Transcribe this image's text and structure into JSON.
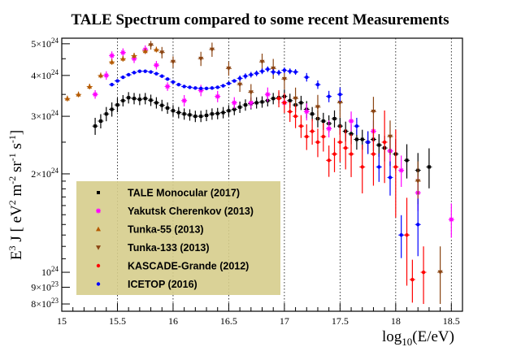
{
  "chart_data": {
    "type": "scatter",
    "title": "TALE Spectrum compared to some recent Measurements",
    "xlabel": "log10(E/eV)",
    "ylabel": "E3 J [ eV2 m-2 sr-1 s-1 ]",
    "xlim": [
      15,
      18.6
    ],
    "ylim": [
      7.6e+23,
      5.2e+24
    ],
    "y_scale": "log",
    "grid": "vertical dotted lines at 15.5, 16, 16.5, 17, 17.5, 18, 18.5",
    "legend_position": "bottom-left",
    "x_ticks": [
      "15",
      "15.5",
      "16",
      "16.5",
      "17",
      "17.5",
      "18",
      "18.5"
    ],
    "y_ticks": [
      {
        "value": 5e+24,
        "mantissa": "5",
        "exp": "24"
      },
      {
        "value": 4e+24,
        "mantissa": "4",
        "exp": "24"
      },
      {
        "value": 3e+24,
        "mantissa": "3",
        "exp": "24"
      },
      {
        "value": 2e+24,
        "mantissa": "2",
        "exp": "24"
      },
      {
        "value": 1e+24,
        "mantissa": "",
        "exp": "24"
      },
      {
        "value": 9e+23,
        "mantissa": "9",
        "exp": "23"
      },
      {
        "value": 8e+23,
        "mantissa": "8",
        "exp": "23"
      }
    ],
    "series": [
      {
        "name": "TALE Monocular (2017)",
        "color": "#000000",
        "marker": "square",
        "points": [
          [
            15.3,
            2.8e+24,
            0.06
          ],
          [
            15.35,
            2.9e+24,
            0.05
          ],
          [
            15.4,
            3.05e+24,
            0.05
          ],
          [
            15.45,
            3.15e+24,
            0.05
          ],
          [
            15.5,
            3.25e+24,
            0.05
          ],
          [
            15.55,
            3.35e+24,
            0.04
          ],
          [
            15.6,
            3.42e+24,
            0.04
          ],
          [
            15.65,
            3.4e+24,
            0.04
          ],
          [
            15.7,
            3.38e+24,
            0.04
          ],
          [
            15.75,
            3.4e+24,
            0.04
          ],
          [
            15.8,
            3.36e+24,
            0.04
          ],
          [
            15.85,
            3.3e+24,
            0.04
          ],
          [
            15.9,
            3.24e+24,
            0.04
          ],
          [
            15.95,
            3.18e+24,
            0.04
          ],
          [
            16.0,
            3.12e+24,
            0.04
          ],
          [
            16.05,
            3.08e+24,
            0.04
          ],
          [
            16.1,
            3.05e+24,
            0.04
          ],
          [
            16.15,
            3.03e+24,
            0.04
          ],
          [
            16.2,
            3e+24,
            0.04
          ],
          [
            16.25,
            3e+24,
            0.04
          ],
          [
            16.3,
            3.02e+24,
            0.04
          ],
          [
            16.35,
            3.05e+24,
            0.04
          ],
          [
            16.4,
            3.06e+24,
            0.04
          ],
          [
            16.45,
            3.08e+24,
            0.04
          ],
          [
            16.5,
            3.12e+24,
            0.04
          ],
          [
            16.55,
            3.15e+24,
            0.04
          ],
          [
            16.6,
            3.2e+24,
            0.04
          ],
          [
            16.65,
            3.25e+24,
            0.04
          ],
          [
            16.7,
            3.28e+24,
            0.04
          ],
          [
            16.75,
            3.3e+24,
            0.04
          ],
          [
            16.8,
            3.32e+24,
            0.04
          ],
          [
            16.85,
            3.35e+24,
            0.04
          ],
          [
            16.9,
            3.4e+24,
            0.04
          ],
          [
            16.95,
            3.42e+24,
            0.04
          ],
          [
            17.0,
            3.45e+24,
            0.05
          ],
          [
            17.05,
            3.35e+24,
            0.05
          ],
          [
            17.1,
            3.25e+24,
            0.05
          ],
          [
            17.15,
            3.3e+24,
            0.05
          ],
          [
            17.2,
            3.15e+24,
            0.06
          ],
          [
            17.25,
            3.05e+24,
            0.05
          ],
          [
            17.3,
            2.95e+24,
            0.06
          ],
          [
            17.35,
            2.9e+24,
            0.06
          ],
          [
            17.4,
            2.85e+24,
            0.06
          ],
          [
            17.45,
            2.95e+24,
            0.06
          ],
          [
            17.5,
            2.8e+24,
            0.06
          ],
          [
            17.55,
            2.7e+24,
            0.07
          ],
          [
            17.6,
            2.65e+24,
            0.07
          ],
          [
            17.65,
            2.55e+24,
            0.07
          ],
          [
            17.7,
            2.55e+24,
            0.07
          ],
          [
            17.75,
            2.5e+24,
            0.08
          ],
          [
            17.8,
            2.55e+24,
            0.08
          ],
          [
            17.85,
            2.45e+24,
            0.08
          ],
          [
            17.9,
            2.4e+24,
            0.09
          ],
          [
            17.95,
            2.35e+24,
            0.1
          ],
          [
            18.0,
            2.3e+24,
            0.11
          ],
          [
            18.1,
            2.2e+24,
            0.12
          ],
          [
            18.2,
            2.05e+24,
            0.13
          ],
          [
            18.3,
            2.1e+24,
            0.14
          ]
        ]
      },
      {
        "name": "Yakutsk Cherenkov (2013)",
        "color": "#ff00ff",
        "marker": "star",
        "points": [
          [
            15.3,
            3.5e+24,
            0.03
          ],
          [
            15.4,
            4e+24,
            0.03
          ],
          [
            15.45,
            4.6e+24,
            0.03
          ],
          [
            15.55,
            4.7e+24,
            0.03
          ],
          [
            15.65,
            4.5e+24,
            0.03
          ],
          [
            15.75,
            4.8e+24,
            0.03
          ],
          [
            15.85,
            4.3e+24,
            0.03
          ],
          [
            15.95,
            3.7e+24,
            0.03
          ],
          [
            16.1,
            3.35e+24,
            0.04
          ],
          [
            16.25,
            3.6e+24,
            0.04
          ],
          [
            16.4,
            3.45e+24,
            0.04
          ],
          [
            16.55,
            3.3e+24,
            0.04
          ],
          [
            16.7,
            3.3e+24,
            0.04
          ],
          [
            16.85,
            3.5e+24,
            0.05
          ],
          [
            17.0,
            3.3e+24,
            0.05
          ],
          [
            17.2,
            3.1e+24,
            0.06
          ],
          [
            17.4,
            2.75e+24,
            0.06
          ],
          [
            17.6,
            2.9e+24,
            0.07
          ],
          [
            17.8,
            2.7e+24,
            0.08
          ],
          [
            17.95,
            2.35e+24,
            0.1
          ],
          [
            18.05,
            2.05e+24,
            0.11
          ],
          [
            18.2,
            1.75e+24,
            0.12
          ],
          [
            18.5,
            1.45e+24,
            0.12
          ]
        ]
      },
      {
        "name": "Tunka-55 (2013)",
        "color": "#b55a00",
        "marker": "triangle-up",
        "points": [
          [
            15.05,
            3.4e+24,
            0.02
          ],
          [
            15.15,
            3.5e+24,
            0.02
          ],
          [
            15.25,
            3.7e+24,
            0.02
          ],
          [
            15.35,
            4e+24,
            0.02
          ],
          [
            15.45,
            4.4e+24,
            0.02
          ],
          [
            15.55,
            4.5e+24,
            0.02
          ],
          [
            15.65,
            4.6e+24,
            0.02
          ],
          [
            15.75,
            4.75e+24,
            0.02
          ],
          [
            15.85,
            4.8e+24,
            0.02
          ]
        ]
      },
      {
        "name": "Tunka-133 (2013)",
        "color": "#8b4513",
        "marker": "triangle-down",
        "points": [
          [
            15.8,
            4.95e+24,
            0.03
          ],
          [
            15.9,
            4.7e+24,
            0.04
          ],
          [
            16.0,
            4.4e+24,
            0.04
          ],
          [
            16.25,
            4.5e+24,
            0.05
          ],
          [
            16.35,
            4.8e+24,
            0.05
          ],
          [
            16.5,
            4.2e+24,
            0.05
          ],
          [
            16.6,
            3.75e+24,
            0.05
          ],
          [
            16.7,
            3.55e+24,
            0.06
          ],
          [
            16.8,
            4.4e+24,
            0.06
          ],
          [
            16.9,
            4.2e+24,
            0.07
          ],
          [
            17.0,
            3.9e+24,
            0.07
          ],
          [
            17.1,
            3.4e+24,
            0.08
          ],
          [
            17.3,
            3.2e+24,
            0.09
          ],
          [
            17.5,
            3.3e+24,
            0.1
          ],
          [
            17.8,
            3.1e+24,
            0.11
          ],
          [
            17.95,
            2.6e+24,
            0.12
          ],
          [
            18.2,
            1.9e+24,
            0.15
          ],
          [
            18.4,
            1e+24,
            0.2
          ]
        ]
      },
      {
        "name": "KASCADE-Grande (2012)",
        "color": "#ff0000",
        "marker": "circle",
        "points": [
          [
            16.95,
            3.4e+24,
            0.06
          ],
          [
            17.0,
            3.3e+24,
            0.07
          ],
          [
            17.05,
            3.1e+24,
            0.07
          ],
          [
            17.1,
            3e+24,
            0.08
          ],
          [
            17.15,
            2.8e+24,
            0.08
          ],
          [
            17.2,
            2.6e+24,
            0.09
          ],
          [
            17.25,
            2.7e+24,
            0.09
          ],
          [
            17.3,
            2.5e+24,
            0.1
          ],
          [
            17.35,
            2.6e+24,
            0.1
          ],
          [
            17.4,
            2.2e+24,
            0.11
          ],
          [
            17.45,
            2.3e+24,
            0.12
          ],
          [
            17.5,
            2.5e+24,
            0.13
          ],
          [
            17.55,
            2.4e+24,
            0.14
          ],
          [
            17.6,
            2.3e+24,
            0.15
          ],
          [
            17.7,
            2.1e+24,
            0.17
          ],
          [
            17.8,
            2.3e+24,
            0.2
          ],
          [
            17.9,
            2.5e+24,
            0.25
          ],
          [
            18.0,
            2.1e+24,
            0.3
          ],
          [
            18.1,
            1.3e+24,
            0.3
          ],
          [
            18.15,
            9.5e+23,
            0.15
          ],
          [
            18.25,
            1e+24,
            0.2
          ]
        ]
      },
      {
        "name": "ICETOP (2016)",
        "color": "#0000ff",
        "marker": "circle",
        "points": [
          [
            15.45,
            3.75e+24,
            0.01
          ],
          [
            15.5,
            3.85e+24,
            0.01
          ],
          [
            15.55,
            3.95e+24,
            0.01
          ],
          [
            15.6,
            4.02e+24,
            0.01
          ],
          [
            15.65,
            4.08e+24,
            0.01
          ],
          [
            15.7,
            4.12e+24,
            0.01
          ],
          [
            15.75,
            4.12e+24,
            0.01
          ],
          [
            15.8,
            4.1e+24,
            0.01
          ],
          [
            15.85,
            4.05e+24,
            0.01
          ],
          [
            15.9,
            3.98e+24,
            0.01
          ],
          [
            15.95,
            3.9e+24,
            0.01
          ],
          [
            16.0,
            3.82e+24,
            0.01
          ],
          [
            16.05,
            3.75e+24,
            0.01
          ],
          [
            16.1,
            3.7e+24,
            0.01
          ],
          [
            16.15,
            3.68e+24,
            0.01
          ],
          [
            16.2,
            3.66e+24,
            0.01
          ],
          [
            16.25,
            3.65e+24,
            0.01
          ],
          [
            16.3,
            3.65e+24,
            0.01
          ],
          [
            16.35,
            3.66e+24,
            0.01
          ],
          [
            16.4,
            3.68e+24,
            0.01
          ],
          [
            16.45,
            3.72e+24,
            0.01
          ],
          [
            16.5,
            3.78e+24,
            0.01
          ],
          [
            16.55,
            3.85e+24,
            0.01
          ],
          [
            16.6,
            3.92e+24,
            0.02
          ],
          [
            16.65,
            3.98e+24,
            0.02
          ],
          [
            16.7,
            4.02e+24,
            0.02
          ],
          [
            16.75,
            4.06e+24,
            0.02
          ],
          [
            16.8,
            4.12e+24,
            0.02
          ],
          [
            16.85,
            4.18e+24,
            0.02
          ],
          [
            16.9,
            4.1e+24,
            0.02
          ],
          [
            16.95,
            4.08e+24,
            0.02
          ],
          [
            17.0,
            4.15e+24,
            0.02
          ],
          [
            17.05,
            4.12e+24,
            0.02
          ],
          [
            17.1,
            4.1e+24,
            0.02
          ],
          [
            17.2,
            3.95e+24,
            0.03
          ],
          [
            17.3,
            3.75e+24,
            0.03
          ],
          [
            17.4,
            3.45e+24,
            0.04
          ],
          [
            17.5,
            3.5e+24,
            0.05
          ],
          [
            17.65,
            2.8e+24,
            0.06
          ],
          [
            17.75,
            2.5e+24,
            0.08
          ],
          [
            17.85,
            2.1e+24,
            0.1
          ],
          [
            17.95,
            1.95e+24,
            0.12
          ],
          [
            18.05,
            1.3e+24,
            0.15
          ],
          [
            18.2,
            1.4e+24,
            0.2
          ]
        ]
      }
    ]
  }
}
